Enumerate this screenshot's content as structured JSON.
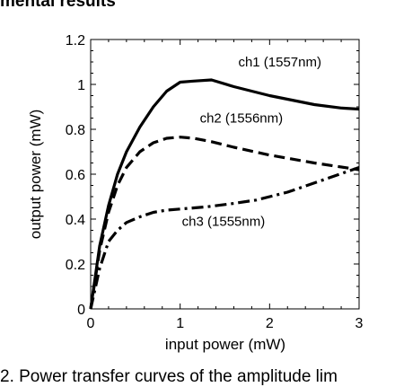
{
  "page": {
    "heading": "mental results",
    "caption": "2. Power transfer curves of the amplitude lim"
  },
  "chart_data": {
    "type": "line",
    "xlabel": "input power (mW)",
    "ylabel": "output power (mW)",
    "xlim": [
      0,
      3
    ],
    "ylim": [
      0,
      1.2
    ],
    "xticks": [
      0,
      1,
      2,
      3
    ],
    "yticks": [
      0,
      0.2,
      0.4,
      0.6,
      0.8,
      1,
      1.2
    ],
    "xtick_labels": [
      "0",
      "1",
      "2",
      "3"
    ],
    "ytick_labels": [
      "0",
      "0.2",
      "0.4",
      "0.6",
      "0.8",
      "1",
      "1.2"
    ],
    "grid": false,
    "series": [
      {
        "name": "ch1 (1557nm)",
        "style": "solid",
        "color": "#000000",
        "x": [
          0,
          0.05,
          0.1,
          0.2,
          0.3,
          0.4,
          0.55,
          0.7,
          0.85,
          1.0,
          1.15,
          1.35,
          1.6,
          2.0,
          2.5,
          2.8,
          3.0
        ],
        "y": [
          0,
          0.14,
          0.28,
          0.46,
          0.6,
          0.7,
          0.81,
          0.9,
          0.97,
          1.01,
          1.015,
          1.02,
          0.99,
          0.95,
          0.91,
          0.895,
          0.89
        ]
      },
      {
        "name": "ch2 (1556nm)",
        "style": "dashed",
        "color": "#000000",
        "x": [
          0,
          0.05,
          0.1,
          0.2,
          0.3,
          0.4,
          0.55,
          0.7,
          0.85,
          1.0,
          1.15,
          1.35,
          1.6,
          2.0,
          2.5,
          3.0
        ],
        "y": [
          0,
          0.13,
          0.26,
          0.43,
          0.55,
          0.63,
          0.7,
          0.74,
          0.76,
          0.765,
          0.76,
          0.745,
          0.72,
          0.685,
          0.65,
          0.62
        ]
      },
      {
        "name": "ch3 (1555nm)",
        "style": "dashdot",
        "color": "#000000",
        "x": [
          0,
          0.05,
          0.1,
          0.2,
          0.3,
          0.4,
          0.55,
          0.7,
          0.85,
          1.0,
          1.3,
          1.6,
          1.85,
          2.2,
          2.6,
          3.0
        ],
        "y": [
          0,
          0.09,
          0.18,
          0.3,
          0.35,
          0.385,
          0.41,
          0.43,
          0.44,
          0.445,
          0.455,
          0.47,
          0.485,
          0.52,
          0.575,
          0.63
        ]
      }
    ],
    "annotations": [
      {
        "text": "ch1 (1557nm)",
        "x": 1.65,
        "y": 1.08,
        "series": 0
      },
      {
        "text": "ch2 (1556nm)",
        "x": 1.22,
        "y": 0.83,
        "series": 1
      },
      {
        "text": "ch3 (1555nm)",
        "x": 1.02,
        "y": 0.37,
        "series": 2
      }
    ]
  }
}
